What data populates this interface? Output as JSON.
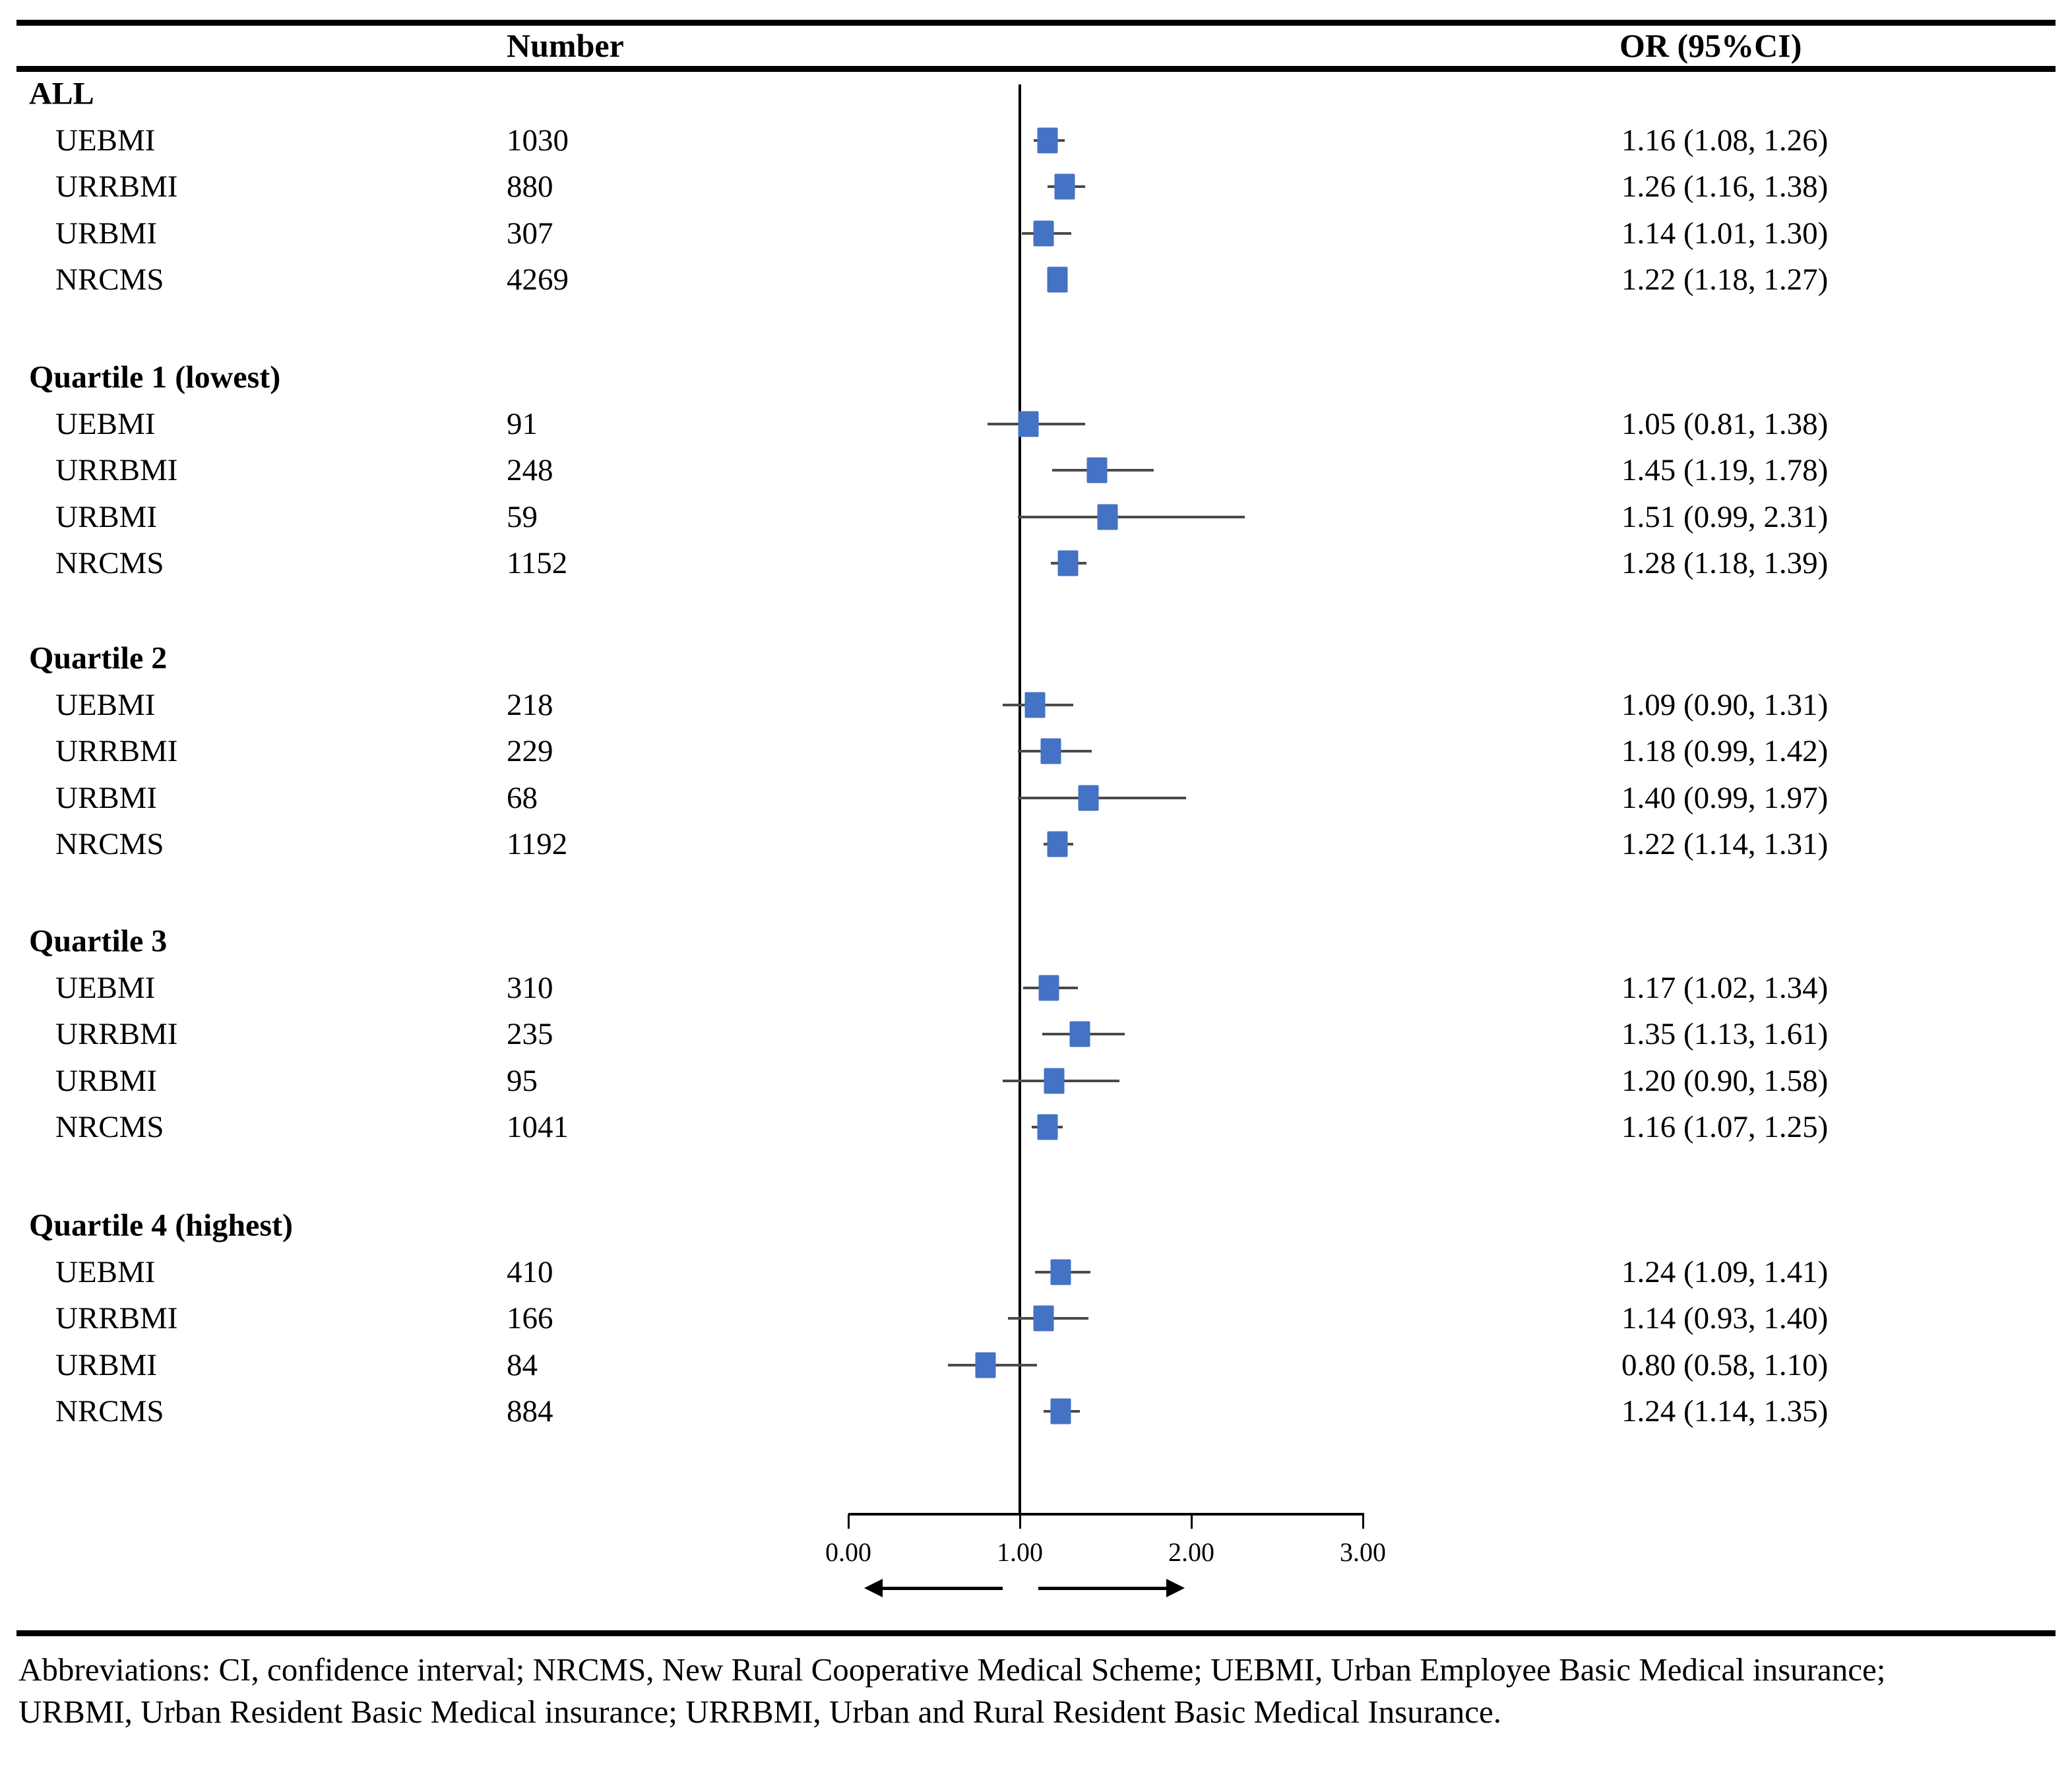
{
  "columns": {
    "number": "Number",
    "or": "OR (95%CI)"
  },
  "footer": "Abbreviations: CI, confidence interval; NRCMS, New Rural Cooperative Medical Scheme; UEBMI, Urban Employee Basic Medical insurance; URBMI, Urban Resident Basic Medical insurance; URRBMI, Urban and Rural Resident Basic Medical Insurance.",
  "colors": {
    "marker_blue": "#4472C4",
    "ci_line": "#4a4a4a",
    "axis_black": "#000000"
  },
  "chart_data": {
    "type": "scatter",
    "subtype": "forest-plot",
    "title": "",
    "xlabel": "",
    "ylabel": "",
    "xlim": [
      0,
      3
    ],
    "x_ticks": [
      0,
      1,
      2,
      3
    ],
    "x_tick_labels": [
      "0.00",
      "1.00",
      "2.00",
      "3.00"
    ],
    "reference_line_x": 1.0,
    "grid": false,
    "legend": false,
    "groups": [
      {
        "label": "ALL",
        "rows": [
          {
            "label": "UEBMI",
            "n": "1030",
            "or": 1.16,
            "lo": 1.08,
            "hi": 1.26,
            "text": "1.16 (1.08, 1.26)"
          },
          {
            "label": "URRBMI",
            "n": "880",
            "or": 1.26,
            "lo": 1.16,
            "hi": 1.38,
            "text": "1.26 (1.16, 1.38)"
          },
          {
            "label": "URBMI",
            "n": "307",
            "or": 1.14,
            "lo": 1.01,
            "hi": 1.3,
            "text": "1.14 (1.01, 1.30)"
          },
          {
            "label": "NRCMS",
            "n": "4269",
            "or": 1.22,
            "lo": 1.18,
            "hi": 1.27,
            "text": "1.22 (1.18, 1.27)"
          }
        ]
      },
      {
        "label": "Quartile 1 (lowest)",
        "rows": [
          {
            "label": "UEBMI",
            "n": "91",
            "or": 1.05,
            "lo": 0.81,
            "hi": 1.38,
            "text": "1.05 (0.81, 1.38)"
          },
          {
            "label": "URRBMI",
            "n": "248",
            "or": 1.45,
            "lo": 1.19,
            "hi": 1.78,
            "text": "1.45 (1.19, 1.78)"
          },
          {
            "label": "URBMI",
            "n": "59",
            "or": 1.51,
            "lo": 0.99,
            "hi": 2.31,
            "text": "1.51 (0.99, 2.31)"
          },
          {
            "label": "NRCMS",
            "n": "1152",
            "or": 1.28,
            "lo": 1.18,
            "hi": 1.39,
            "text": "1.28 (1.18, 1.39)"
          }
        ]
      },
      {
        "label": "Quartile 2",
        "rows": [
          {
            "label": "UEBMI",
            "n": "218",
            "or": 1.09,
            "lo": 0.9,
            "hi": 1.31,
            "text": "1.09 (0.90, 1.31)"
          },
          {
            "label": "URRBMI",
            "n": "229",
            "or": 1.18,
            "lo": 0.99,
            "hi": 1.42,
            "text": "1.18 (0.99, 1.42)"
          },
          {
            "label": "URBMI",
            "n": "68",
            "or": 1.4,
            "lo": 0.99,
            "hi": 1.97,
            "text": "1.40 (0.99, 1.97)"
          },
          {
            "label": "NRCMS",
            "n": "1192",
            "or": 1.22,
            "lo": 1.14,
            "hi": 1.31,
            "text": "1.22 (1.14, 1.31)"
          }
        ]
      },
      {
        "label": "Quartile 3",
        "rows": [
          {
            "label": "UEBMI",
            "n": "310",
            "or": 1.17,
            "lo": 1.02,
            "hi": 1.34,
            "text": "1.17 (1.02, 1.34)"
          },
          {
            "label": "URRBMI",
            "n": "235",
            "or": 1.35,
            "lo": 1.13,
            "hi": 1.61,
            "text": "1.35 (1.13, 1.61)"
          },
          {
            "label": "URBMI",
            "n": "95",
            "or": 1.2,
            "lo": 0.9,
            "hi": 1.58,
            "text": "1.20 (0.90, 1.58)"
          },
          {
            "label": "NRCMS",
            "n": "1041",
            "or": 1.16,
            "lo": 1.07,
            "hi": 1.25,
            "text": "1.16 (1.07, 1.25)"
          }
        ]
      },
      {
        "label": "Quartile 4 (highest)",
        "rows": [
          {
            "label": "UEBMI",
            "n": "410",
            "or": 1.24,
            "lo": 1.09,
            "hi": 1.41,
            "text": "1.24 (1.09, 1.41)"
          },
          {
            "label": "URRBMI",
            "n": "166",
            "or": 1.14,
            "lo": 0.93,
            "hi": 1.4,
            "text": "1.14 (0.93, 1.40)"
          },
          {
            "label": "URBMI",
            "n": "84",
            "or": 0.8,
            "lo": 0.58,
            "hi": 1.1,
            "text": "0.80 (0.58, 1.10)"
          },
          {
            "label": "NRCMS",
            "n": "884",
            "or": 1.24,
            "lo": 1.14,
            "hi": 1.35,
            "text": "1.24 (1.14, 1.35)"
          }
        ]
      }
    ]
  }
}
